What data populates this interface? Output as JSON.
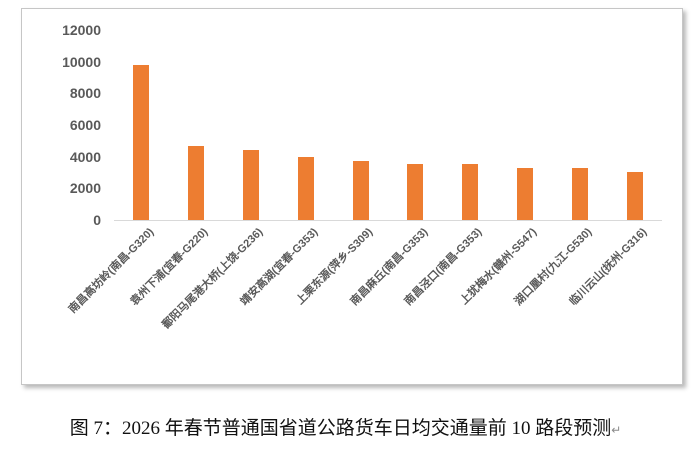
{
  "caption": {
    "text": "图 7：2026 年春节普通国省道公路货车日均交通量前 10 路段预测",
    "paragraph_mark": "↵"
  },
  "chart_data": {
    "type": "bar",
    "title": "",
    "xlabel": "",
    "ylabel": "",
    "categories": [
      "南昌高坊岭(南昌-G320)",
      "袁州下浦(宜春-G220)",
      "鄱阳马尾港大桥(上饶-G236)",
      "靖安高湖(宜春-G353)",
      "上栗东源(萍乡-S309)",
      "南昌麻丘(南昌-G353)",
      "南昌泾口(南昌-G353)",
      "上犹梅水(赣州-S547)",
      "湖口凰村(九江-G530)",
      "临川云山(抚州-G316)"
    ],
    "values": [
      9800,
      4650,
      4400,
      3950,
      3700,
      3550,
      3550,
      3300,
      3300,
      3000
    ],
    "ylim": [
      0,
      12000
    ],
    "yticks": [
      0,
      2000,
      4000,
      6000,
      8000,
      10000,
      12000
    ],
    "grid": false,
    "legend": "none",
    "x_label_rotation_deg": 45,
    "bar_color": "#ED7D31",
    "axis_label_color": "#595959",
    "axis_line_color": "#D9D9D9"
  }
}
